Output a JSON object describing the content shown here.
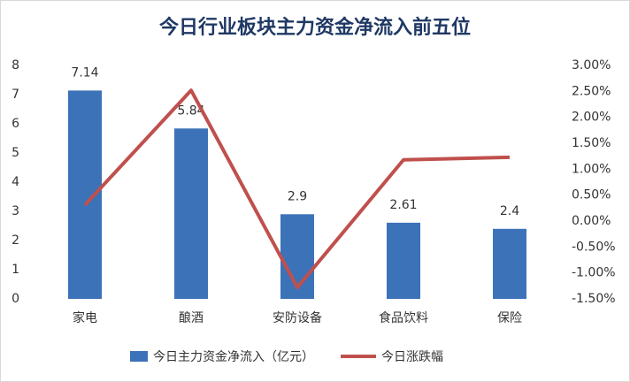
{
  "chart_data": {
    "type": "combo",
    "title": "今日行业板块主力资金净流入前五位",
    "categories": [
      "家电",
      "酿酒",
      "安防设备",
      "食品饮料",
      "保险"
    ],
    "series": [
      {
        "name": "今日主力资金净流入（亿元）",
        "type": "bar",
        "color": "#3c72b8",
        "values": [
          7.14,
          5.84,
          2.9,
          2.61,
          2.4
        ]
      },
      {
        "name": "今日涨跌幅",
        "type": "line",
        "axis": "y2",
        "color": "#c0504d",
        "values": [
          0.31,
          2.52,
          -1.28,
          1.18,
          1.23
        ]
      }
    ],
    "ylim": [
      0,
      8
    ],
    "yticks": [
      0,
      1,
      2,
      3,
      4,
      5,
      6,
      7,
      8
    ],
    "y2lim": [
      -1.5,
      3
    ],
    "y2ticks": [
      {
        "value": -1.5,
        "label": "-1.50%"
      },
      {
        "value": -1,
        "label": "-1.00%"
      },
      {
        "value": -0.5,
        "label": "-0.50%"
      },
      {
        "value": 0,
        "label": "0.00%"
      },
      {
        "value": 0.5,
        "label": "0.50%"
      },
      {
        "value": 1,
        "label": "1.00%"
      },
      {
        "value": 1.5,
        "label": "1.50%"
      },
      {
        "value": 2,
        "label": "2.00%"
      },
      {
        "value": 2.5,
        "label": "2.50%"
      },
      {
        "value": 3,
        "label": "3.00%"
      }
    ],
    "grid": false
  }
}
